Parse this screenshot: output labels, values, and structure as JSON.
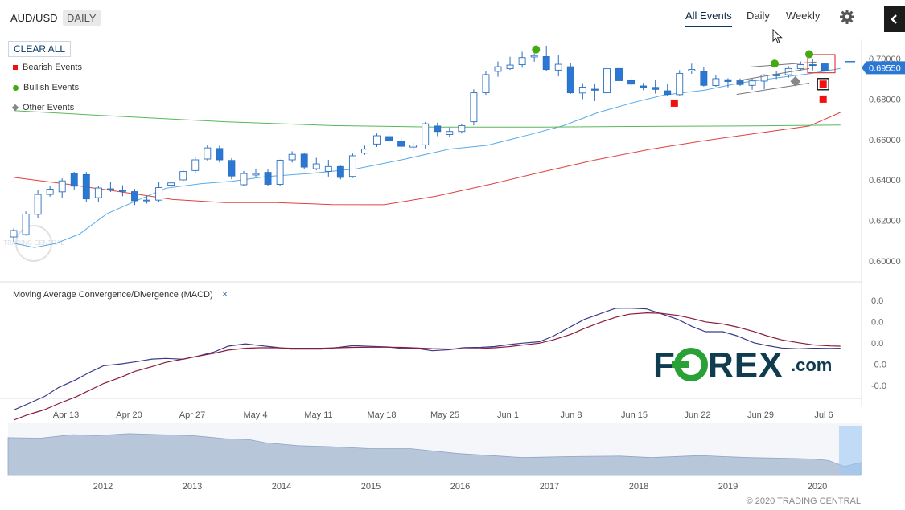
{
  "header": {
    "symbol": "AUD/USD",
    "interval": "DAILY",
    "tabs": [
      {
        "label": "All Events",
        "active": true
      },
      {
        "label": "Daily",
        "active": false
      },
      {
        "label": "Weekly",
        "active": false
      }
    ]
  },
  "events": {
    "clear_all_label": "CLEAR ALL",
    "legend": [
      {
        "label": "Bearish Events",
        "color": "#ee1111",
        "shape": "square"
      },
      {
        "label": "Bullish Events",
        "color": "#44aa11",
        "shape": "circle"
      },
      {
        "label": "Other Events",
        "color": "#888888",
        "shape": "diamond"
      }
    ]
  },
  "icons": {
    "settings": "gear-icon",
    "collapse": "chevron-left-icon",
    "cursor": "mouse-pointer-icon"
  },
  "colors": {
    "bull_candle": "#ffffff",
    "bear_candle": "#2a78d4",
    "candle_outline": "#2a6fbf",
    "ma_fast": "#5aabe8",
    "ma_mid": "#e04040",
    "ma_slow": "#59b85a",
    "macd": "#3a3a8c",
    "signal": "#8c1a3a",
    "navigator": "#b8c6da"
  },
  "price_label": "0.69550",
  "chart_data": [
    {
      "type": "candlestick",
      "title": "",
      "x_ticks": [
        "Apr 13",
        "Apr 20",
        "Apr 27",
        "May 4",
        "May 11",
        "May 18",
        "May 25",
        "Jun 1",
        "Jun 8",
        "Jun 15",
        "Jun 22",
        "Jun 29",
        "Jul 6"
      ],
      "y_ticks": [
        "0.70000",
        "0.68000",
        "0.66000",
        "0.64000",
        "0.62000",
        "0.60000"
      ],
      "ylim": [
        0.597,
        0.707
      ],
      "last_price": 0.6955,
      "candles": [
        [
          0.6119,
          0.6151,
          0.6095,
          0.6161
        ],
        [
          0.6131,
          0.6232,
          0.6125,
          0.6245
        ],
        [
          0.6231,
          0.6329,
          0.6212,
          0.6351
        ],
        [
          0.6329,
          0.6355,
          0.6318,
          0.6372
        ],
        [
          0.6342,
          0.6396,
          0.6311,
          0.6408
        ],
        [
          0.6434,
          0.637,
          0.6352,
          0.644
        ],
        [
          0.6427,
          0.6307,
          0.6291,
          0.644
        ],
        [
          0.6313,
          0.6361,
          0.629,
          0.6372
        ],
        [
          0.6357,
          0.6351,
          0.6341,
          0.639
        ],
        [
          0.6351,
          0.6344,
          0.632,
          0.6375
        ],
        [
          0.6343,
          0.6298,
          0.6277,
          0.6356
        ],
        [
          0.6298,
          0.6301,
          0.6284,
          0.6321
        ],
        [
          0.6301,
          0.6363,
          0.6292,
          0.639
        ],
        [
          0.6375,
          0.6386,
          0.6362,
          0.6394
        ],
        [
          0.6401,
          0.6442,
          0.6393,
          0.6448
        ],
        [
          0.6447,
          0.65,
          0.6436,
          0.6516
        ],
        [
          0.6504,
          0.6559,
          0.6497,
          0.6573
        ],
        [
          0.6556,
          0.65,
          0.6487,
          0.657
        ],
        [
          0.6497,
          0.642,
          0.6404,
          0.6508
        ],
        [
          0.6377,
          0.6432,
          0.6371,
          0.6445
        ],
        [
          0.6425,
          0.6432,
          0.6417,
          0.6455
        ],
        [
          0.6438,
          0.6379,
          0.6373,
          0.6453
        ],
        [
          0.6379,
          0.6498,
          0.6372,
          0.6501
        ],
        [
          0.65,
          0.6527,
          0.6487,
          0.6542
        ],
        [
          0.6528,
          0.6464,
          0.6456,
          0.6535
        ],
        [
          0.6456,
          0.648,
          0.6448,
          0.651
        ],
        [
          0.6443,
          0.6467,
          0.6417,
          0.65
        ],
        [
          0.6467,
          0.6413,
          0.6404,
          0.6471
        ],
        [
          0.6418,
          0.652,
          0.641,
          0.6531
        ],
        [
          0.6533,
          0.6553,
          0.6525,
          0.657
        ],
        [
          0.6578,
          0.6619,
          0.6564,
          0.663
        ],
        [
          0.6615,
          0.6595,
          0.6583,
          0.663
        ],
        [
          0.6593,
          0.6567,
          0.6552,
          0.6613
        ],
        [
          0.6563,
          0.6573,
          0.6543,
          0.6584
        ],
        [
          0.6574,
          0.6678,
          0.6556,
          0.6687
        ],
        [
          0.6667,
          0.664,
          0.6617,
          0.6683
        ],
        [
          0.6625,
          0.664,
          0.6611,
          0.666
        ],
        [
          0.664,
          0.6669,
          0.663,
          0.6679
        ],
        [
          0.6688,
          0.6831,
          0.667,
          0.6848
        ],
        [
          0.6831,
          0.6921,
          0.6821,
          0.6938
        ],
        [
          0.6937,
          0.696,
          0.691,
          0.6986
        ],
        [
          0.695,
          0.6968,
          0.6944,
          0.7009
        ],
        [
          0.697,
          0.7005,
          0.6955,
          0.7034
        ],
        [
          0.7008,
          0.7015,
          0.6985,
          0.7025
        ],
        [
          0.701,
          0.6946,
          0.694,
          0.7064
        ],
        [
          0.6943,
          0.6972,
          0.6912,
          0.7017
        ],
        [
          0.696,
          0.6831,
          0.6826,
          0.6979
        ],
        [
          0.683,
          0.6859,
          0.68,
          0.6879
        ],
        [
          0.6849,
          0.6844,
          0.679,
          0.6873
        ],
        [
          0.6831,
          0.695,
          0.6824,
          0.6973
        ],
        [
          0.6951,
          0.6891,
          0.688,
          0.6972
        ],
        [
          0.6892,
          0.6874,
          0.6856,
          0.6913
        ],
        [
          0.6865,
          0.6857,
          0.6844,
          0.688
        ],
        [
          0.6858,
          0.6848,
          0.6827,
          0.6894
        ],
        [
          0.6841,
          0.6823,
          0.6815,
          0.6877
        ],
        [
          0.6822,
          0.6927,
          0.6818,
          0.6943
        ],
        [
          0.6939,
          0.6946,
          0.6925,
          0.6975
        ],
        [
          0.6938,
          0.6868,
          0.6862,
          0.696
        ],
        [
          0.6867,
          0.6901,
          0.6861,
          0.692
        ],
        [
          0.6896,
          0.6887,
          0.6858,
          0.6903
        ],
        [
          0.6894,
          0.6872,
          0.6865,
          0.6902
        ],
        [
          0.6868,
          0.689,
          0.6846,
          0.6902
        ],
        [
          0.6889,
          0.6919,
          0.6849,
          0.6923
        ],
        [
          0.6915,
          0.6922,
          0.6899,
          0.6938
        ],
        [
          0.692,
          0.6951,
          0.6905,
          0.6963
        ],
        [
          0.695,
          0.697,
          0.6939,
          0.6986
        ],
        [
          0.697,
          0.6969,
          0.6942,
          0.6997
        ],
        [
          0.6974,
          0.6942,
          0.6933,
          0.6978
        ]
      ],
      "moving_averages": [
        {
          "name": "fast",
          "points": [
            [
              0,
              0.6088
            ],
            [
              6,
              0.6067
            ],
            [
              12,
              0.6086
            ],
            [
              19,
              0.6133
            ],
            [
              27,
              0.6234
            ],
            [
              34,
              0.6287
            ],
            [
              44,
              0.636
            ],
            [
              54,
              0.6382
            ],
            [
              63,
              0.6394
            ],
            [
              73,
              0.6417
            ],
            [
              86,
              0.6433
            ],
            [
              99,
              0.6455
            ],
            [
              113,
              0.6503
            ],
            [
              126,
              0.6553
            ],
            [
              137,
              0.6572
            ],
            [
              149,
              0.6624
            ],
            [
              159,
              0.6669
            ],
            [
              169,
              0.6734
            ],
            [
              180,
              0.6787
            ],
            [
              188,
              0.682
            ],
            [
              200,
              0.6845
            ],
            [
              210,
              0.688
            ],
            [
              221,
              0.6906
            ],
            [
              230,
              0.6925
            ],
            [
              239,
              0.6951
            ]
          ]
        },
        {
          "name": "mid",
          "points": [
            [
              0,
              0.6413
            ],
            [
              15,
              0.6381
            ],
            [
              30,
              0.6344
            ],
            [
              46,
              0.6304
            ],
            [
              61,
              0.6289
            ],
            [
              76,
              0.6289
            ],
            [
              92,
              0.6279
            ],
            [
              107,
              0.6278
            ],
            [
              122,
              0.632
            ],
            [
              138,
              0.638
            ],
            [
              153,
              0.6441
            ],
            [
              168,
              0.6499
            ],
            [
              184,
              0.6552
            ],
            [
              199,
              0.6593
            ],
            [
              214,
              0.6629
            ],
            [
              230,
              0.6667
            ],
            [
              239,
              0.6734
            ]
          ]
        },
        {
          "name": "slow",
          "points": [
            [
              0,
              0.6743
            ],
            [
              30,
              0.6715
            ],
            [
              61,
              0.6688
            ],
            [
              92,
              0.6669
            ],
            [
              122,
              0.6662
            ],
            [
              153,
              0.6662
            ],
            [
              184,
              0.6665
            ],
            [
              214,
              0.6668
            ],
            [
              239,
              0.6672
            ]
          ]
        }
      ],
      "trendlines": [
        {
          "from": [
            209,
            0.6823
          ],
          "to": [
            230,
            0.6879
          ]
        },
        {
          "from": [
            209,
            0.689
          ],
          "to": [
            230,
            0.6951
          ]
        },
        {
          "from": [
            213,
            0.6959
          ],
          "to": [
            232,
            0.6983
          ]
        }
      ],
      "events": [
        {
          "kind": "bullish",
          "x": 151,
          "y": 0.7045
        },
        {
          "kind": "bearish",
          "x": 191,
          "y": 0.678
        },
        {
          "kind": "bullish",
          "x": 220,
          "y": 0.6975
        },
        {
          "kind": "other",
          "x": 226,
          "y": 0.6888
        },
        {
          "kind": "bullish",
          "x": 230,
          "y": 0.7022
        },
        {
          "kind": "bearish",
          "x": 234,
          "y": 0.6874
        },
        {
          "kind": "bearish",
          "x": 234,
          "y": 0.68
        }
      ]
    },
    {
      "type": "line",
      "title": "Moving Average Convergence/Divergence (MACD)",
      "y_ticks": [
        "0.0",
        "0.0",
        "0.0",
        "-0.0",
        "-0.0"
      ],
      "series": [
        {
          "name": "MACD",
          "x": [
            0,
            4,
            9,
            13,
            18,
            22,
            26,
            31,
            35,
            40,
            44,
            49,
            53,
            58,
            62,
            67,
            71,
            76,
            80,
            85,
            89,
            94,
            98,
            103,
            108,
            112,
            117,
            121,
            126,
            130,
            135,
            139,
            143,
            147,
            152,
            156,
            161,
            165,
            170,
            174,
            178,
            183,
            187,
            192,
            196,
            200,
            205,
            209,
            214,
            218,
            222,
            227,
            231,
            236,
            239
          ],
          "y": [
            -3.02,
            -2.73,
            -2.36,
            -1.94,
            -1.57,
            -1.21,
            -0.9,
            -0.81,
            -0.72,
            -0.58,
            -0.55,
            -0.59,
            -0.45,
            -0.24,
            0.04,
            0.15,
            0.07,
            -0.02,
            -0.1,
            -0.1,
            -0.1,
            -0.02,
            0.06,
            0.03,
            0.0,
            -0.06,
            -0.08,
            -0.18,
            -0.13,
            -0.03,
            -0.02,
            0.02,
            0.11,
            0.18,
            0.25,
            0.52,
            0.97,
            1.32,
            1.62,
            1.85,
            1.86,
            1.82,
            1.6,
            1.32,
            0.99,
            0.73,
            0.73,
            0.54,
            0.2,
            0.06,
            -0.05,
            -0.09,
            -0.06,
            -0.07,
            -0.06
          ]
        },
        {
          "name": "Signal",
          "x": [
            0,
            4,
            9,
            13,
            18,
            22,
            26,
            31,
            35,
            40,
            44,
            49,
            53,
            58,
            62,
            67,
            71,
            76,
            80,
            85,
            89,
            94,
            98,
            103,
            108,
            112,
            117,
            121,
            126,
            130,
            135,
            139,
            143,
            147,
            152,
            156,
            161,
            165,
            170,
            174,
            178,
            183,
            187,
            192,
            196,
            200,
            205,
            209,
            214,
            218,
            222,
            227,
            231,
            236,
            239
          ],
          "y": [
            -3.5,
            -3.25,
            -3.0,
            -2.71,
            -2.39,
            -2.07,
            -1.75,
            -1.45,
            -1.17,
            -0.94,
            -0.74,
            -0.58,
            -0.45,
            -0.3,
            -0.15,
            -0.06,
            -0.04,
            -0.04,
            -0.06,
            -0.06,
            -0.06,
            -0.04,
            -0.02,
            -0.01,
            -0.01,
            -0.02,
            -0.05,
            -0.08,
            -0.1,
            -0.09,
            -0.07,
            -0.04,
            0.01,
            0.09,
            0.18,
            0.34,
            0.6,
            0.89,
            1.2,
            1.42,
            1.57,
            1.63,
            1.61,
            1.51,
            1.37,
            1.2,
            1.1,
            0.96,
            0.74,
            0.52,
            0.34,
            0.2,
            0.1,
            0.05,
            0.04
          ]
        }
      ]
    },
    {
      "type": "area",
      "title": "",
      "x_ticks": [
        "2012",
        "2013",
        "2014",
        "2015",
        "2016",
        "2017",
        "2018",
        "2019",
        "2020"
      ],
      "series": [
        {
          "name": "",
          "x": [
            0,
            40,
            80,
            110,
            150,
            190,
            230,
            270,
            300,
            320,
            360,
            400,
            450,
            500,
            560,
            600,
            640,
            700,
            760,
            800,
            860,
            920,
            980,
            1000,
            1020,
            1030,
            1040,
            1060
          ],
          "y": [
            0.76,
            0.75,
            0.82,
            0.8,
            0.84,
            0.82,
            0.8,
            0.74,
            0.72,
            0.66,
            0.6,
            0.58,
            0.54,
            0.54,
            0.44,
            0.4,
            0.36,
            0.38,
            0.39,
            0.36,
            0.4,
            0.36,
            0.34,
            0.33,
            0.3,
            0.24,
            0.18,
            0.26
          ]
        }
      ]
    }
  ],
  "watermarks": {
    "brand_logo": "FOREX.com",
    "faint_logo": "TRADING CENTRAL"
  },
  "copyright": "© 2020 TRADING CENTRAL"
}
